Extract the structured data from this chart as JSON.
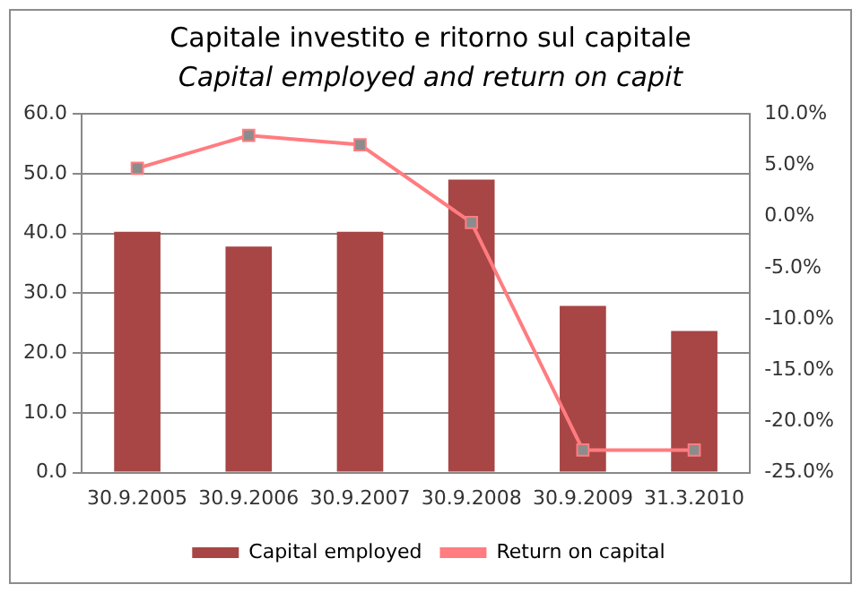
{
  "chart_data": {
    "type": "bar",
    "title": "Capitale investito e ritorno sul capitale",
    "subtitle": "Capital employed and return on capit",
    "categories": [
      "30.9.2005",
      "30.9.2006",
      "30.9.2007",
      "30.9.2008",
      "30.9.2009",
      "31.3.2010"
    ],
    "series": [
      {
        "name": "Capital employed",
        "color": "#a84545",
        "values": [
          40.3,
          37.8,
          40.3,
          49.0,
          27.9,
          23.7
        ]
      },
      {
        "name": "Return on capital",
        "type": "line",
        "axis": "y2",
        "color": "#ff7c80",
        "values": [
          4.7,
          7.9,
          7.0,
          -0.6,
          -22.8,
          -22.8
        ]
      }
    ],
    "ylim": [
      0,
      60
    ],
    "yticks": [
      {
        "value": 0,
        "label": "0.0"
      },
      {
        "value": 10,
        "label": "10.0"
      },
      {
        "value": 20,
        "label": "20.0"
      },
      {
        "value": 30,
        "label": "30.0"
      },
      {
        "value": 40,
        "label": "40.0"
      },
      {
        "value": 50,
        "label": "50.0"
      },
      {
        "value": 60,
        "label": "60.0"
      }
    ],
    "y2lim": [
      -25,
      10
    ],
    "y2ticks": [
      {
        "value": -25,
        "label": "-25.0%"
      },
      {
        "value": -20,
        "label": "-20.0%"
      },
      {
        "value": -15,
        "label": "-15.0%"
      },
      {
        "value": -10,
        "label": "-10.0%"
      },
      {
        "value": -5,
        "label": "-5.0%"
      },
      {
        "value": 0,
        "label": "0.0%"
      },
      {
        "value": 5,
        "label": "5.0%"
      },
      {
        "value": 10,
        "label": "10.0%"
      }
    ],
    "grid": "y",
    "legend": "bottom",
    "marker": "square"
  }
}
